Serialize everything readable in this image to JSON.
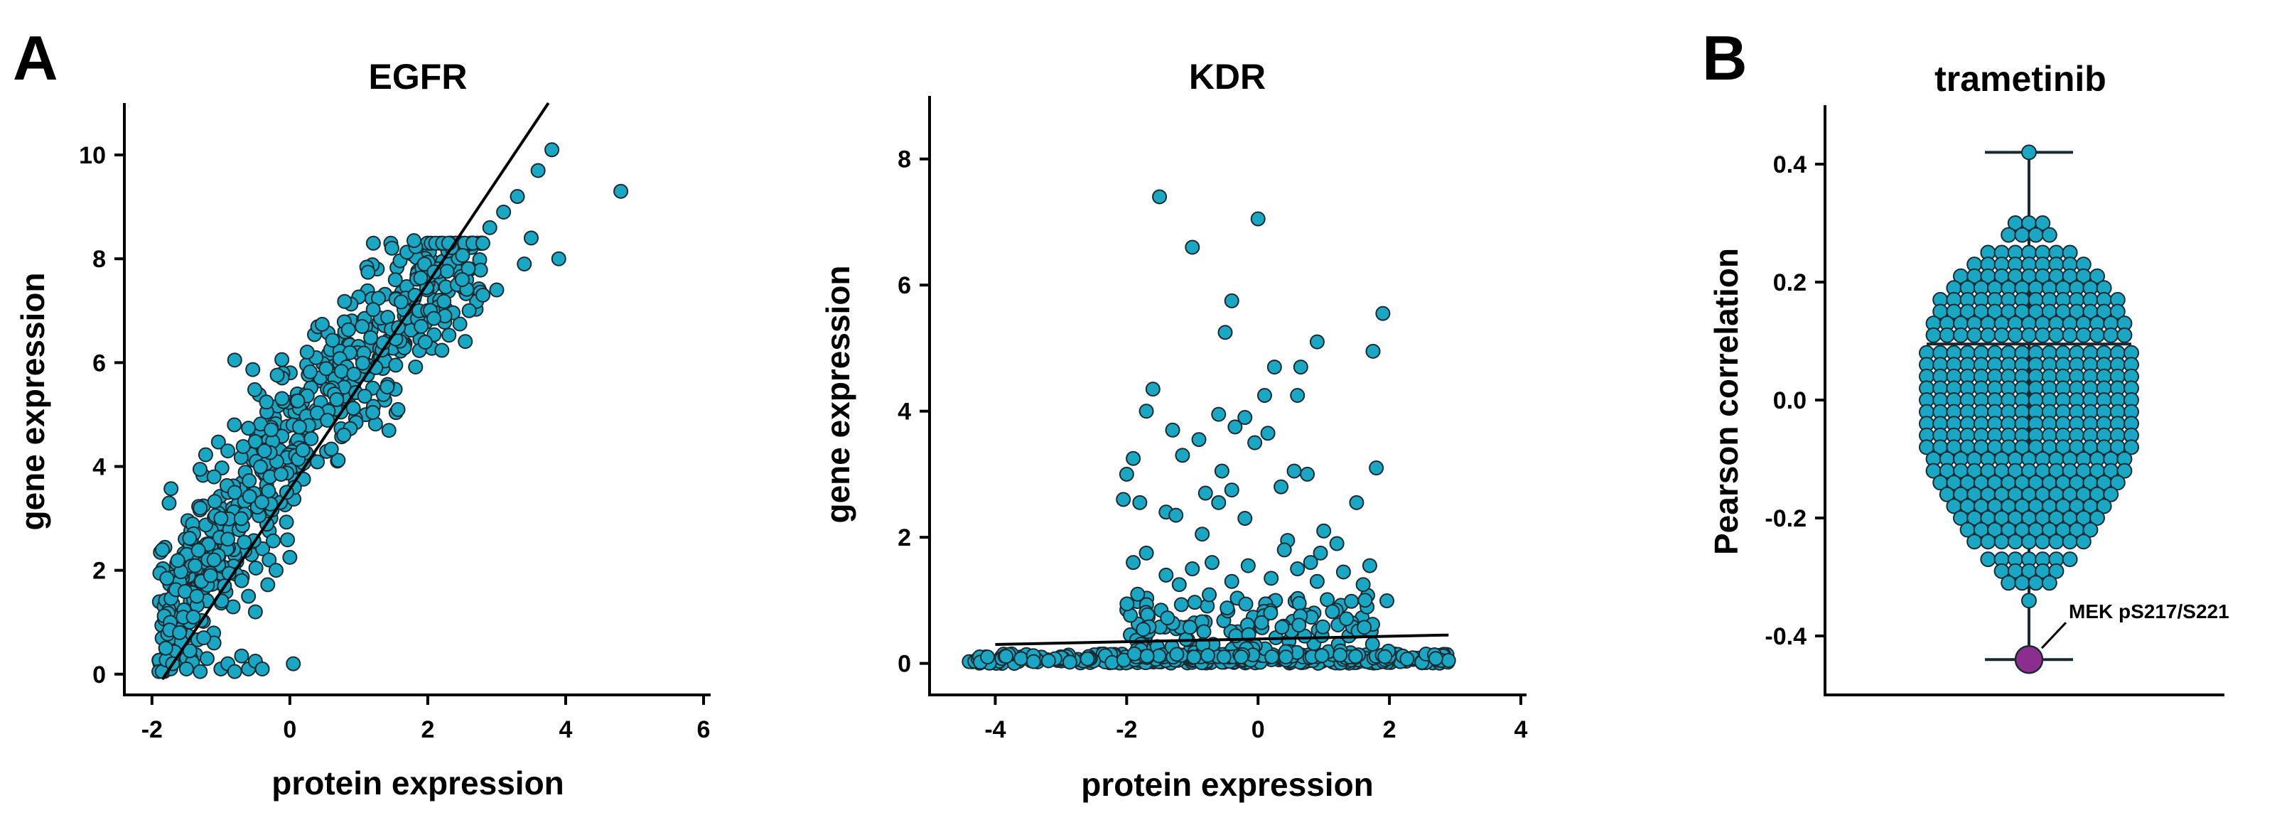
{
  "panels": {
    "a_letter": "A",
    "b_letter": "B"
  },
  "accent": "#1aa7c4",
  "highlight_color": "#8c2e8e",
  "chart_data": [
    {
      "type": "scatter",
      "title": "EGFR",
      "xlabel": "protein expression",
      "ylabel": "gene expression",
      "xlim": [
        -2.4,
        6.0
      ],
      "ylim": [
        -0.4,
        11.0
      ],
      "xticks": [
        -2,
        0,
        2,
        4,
        6
      ],
      "yticks": [
        0,
        2,
        4,
        6,
        8,
        10
      ],
      "grid": false,
      "point_color": "#1aa7c4",
      "fit_line": [
        [
          -1.85,
          -0.1
        ],
        [
          3.75,
          11.0
        ]
      ],
      "generated_cloud": {
        "seed": 7,
        "n": 650,
        "xmin": -1.9,
        "xmax": 2.8,
        "slope": 1.7,
        "intercept": 4.6,
        "noise": 0.75
      },
      "points": [
        [
          3.8,
          10.1
        ],
        [
          4.8,
          9.3
        ],
        [
          3.6,
          9.7
        ],
        [
          3.3,
          9.2
        ],
        [
          3.1,
          8.9
        ],
        [
          2.9,
          8.6
        ],
        [
          3.5,
          8.4
        ],
        [
          3.9,
          8.0
        ],
        [
          3.4,
          7.9
        ],
        [
          3.0,
          7.4
        ],
        [
          2.8,
          7.3
        ],
        [
          2.5,
          7.6
        ],
        [
          2.6,
          7.0
        ],
        [
          1.8,
          8.35
        ],
        [
          -0.8,
          6.05
        ],
        [
          -1.8,
          0.5
        ],
        [
          -1.7,
          0.2
        ],
        [
          -1.6,
          0.8
        ],
        [
          -1.5,
          0.1
        ],
        [
          -1.45,
          0.45
        ],
        [
          -1.4,
          1.1
        ],
        [
          -1.3,
          0.05
        ],
        [
          -1.2,
          0.3
        ],
        [
          -1.1,
          0.6
        ],
        [
          -1.0,
          0.1
        ],
        [
          -0.9,
          0.2
        ],
        [
          -0.8,
          0.05
        ],
        [
          -0.7,
          0.35
        ],
        [
          -0.6,
          0.1
        ],
        [
          -0.5,
          0.25
        ],
        [
          -0.4,
          0.1
        ],
        [
          0.05,
          0.2
        ],
        [
          -1.25,
          0.7
        ],
        [
          -1.35,
          1.5
        ],
        [
          -1.15,
          1.9
        ],
        [
          -1.3,
          3.2
        ],
        [
          -1.0,
          3.0
        ],
        [
          -0.9,
          2.6
        ],
        [
          -1.1,
          2.2
        ],
        [
          -0.7,
          1.8
        ],
        [
          -0.6,
          1.5
        ],
        [
          -0.5,
          1.2
        ],
        [
          -0.3,
          2.2
        ],
        [
          -0.2,
          2.0
        ],
        [
          0.0,
          2.25
        ],
        [
          -0.8,
          3.5
        ],
        [
          -0.9,
          4.3
        ],
        [
          -1.1,
          3.8
        ]
      ]
    },
    {
      "type": "scatter",
      "title": "KDR",
      "xlabel": "protein expression",
      "ylabel": "gene expression",
      "xlim": [
        -5.0,
        4.0
      ],
      "ylim": [
        -0.5,
        9.0
      ],
      "xticks": [
        -4,
        -2,
        0,
        2,
        4
      ],
      "yticks": [
        0,
        2,
        4,
        6,
        8
      ],
      "grid": false,
      "point_color": "#1aa7c4",
      "fit_line": [
        [
          -4.0,
          0.3
        ],
        [
          2.9,
          0.45
        ]
      ],
      "generated_baseline": {
        "seed": 11,
        "n": 380,
        "xmin": -4.4,
        "xmax": 2.9,
        "ymax": 0.15
      },
      "generated_mid": {
        "seed": 23,
        "n": 170,
        "xmin": -2.0,
        "xmax": 2.0,
        "ymin": 0.1,
        "ymax": 1.1
      },
      "points": [
        [
          -1.5,
          7.4
        ],
        [
          0.0,
          7.05
        ],
        [
          -1.0,
          6.6
        ],
        [
          -0.4,
          5.75
        ],
        [
          1.9,
          5.55
        ],
        [
          -0.5,
          5.25
        ],
        [
          0.9,
          5.1
        ],
        [
          0.65,
          4.7
        ],
        [
          0.25,
          4.7
        ],
        [
          -1.6,
          4.35
        ],
        [
          0.6,
          4.25
        ],
        [
          1.75,
          4.95
        ],
        [
          0.1,
          4.25
        ],
        [
          -0.6,
          3.95
        ],
        [
          -0.2,
          3.9
        ],
        [
          -1.7,
          4.0
        ],
        [
          -0.35,
          3.75
        ],
        [
          0.15,
          3.65
        ],
        [
          -1.3,
          3.7
        ],
        [
          -0.9,
          3.55
        ],
        [
          -0.05,
          3.5
        ],
        [
          -1.15,
          3.3
        ],
        [
          -1.9,
          3.25
        ],
        [
          -2.0,
          3.0
        ],
        [
          -0.55,
          3.05
        ],
        [
          0.55,
          3.05
        ],
        [
          0.75,
          3.0
        ],
        [
          1.8,
          3.1
        ],
        [
          0.35,
          2.8
        ],
        [
          -0.4,
          2.75
        ],
        [
          -0.8,
          2.7
        ],
        [
          -1.8,
          2.55
        ],
        [
          -2.05,
          2.6
        ],
        [
          -1.4,
          2.4
        ],
        [
          -1.25,
          2.35
        ],
        [
          -0.2,
          2.3
        ],
        [
          1.5,
          2.55
        ],
        [
          -0.6,
          2.55
        ],
        [
          1.0,
          2.1
        ],
        [
          -0.85,
          2.05
        ],
        [
          0.45,
          1.95
        ],
        [
          1.2,
          1.9
        ],
        [
          0.95,
          1.75
        ],
        [
          0.4,
          1.8
        ],
        [
          -1.7,
          1.75
        ],
        [
          -0.7,
          1.6
        ],
        [
          0.8,
          1.6
        ],
        [
          -1.9,
          1.6
        ],
        [
          1.7,
          1.55
        ],
        [
          -0.15,
          1.55
        ],
        [
          0.6,
          1.5
        ],
        [
          -1.0,
          1.5
        ],
        [
          1.3,
          1.45
        ],
        [
          -1.4,
          1.4
        ],
        [
          0.2,
          1.35
        ],
        [
          -0.4,
          1.3
        ],
        [
          0.9,
          1.3
        ],
        [
          1.6,
          1.25
        ],
        [
          -1.2,
          1.25
        ]
      ]
    },
    {
      "type": "box_swarm",
      "title": "trametinib",
      "xlabel": "",
      "ylabel": "Pearson correlation",
      "ylim": [
        -0.5,
        0.5
      ],
      "yticks": [
        -0.4,
        -0.2,
        0.0,
        0.2,
        0.4
      ],
      "ytick_labels": [
        "-0.4",
        "-0.2",
        "0.0",
        "0.2",
        "0.4"
      ],
      "box": {
        "min": -0.44,
        "q1": -0.09,
        "median": 0.0,
        "q3": 0.095,
        "max": 0.42
      },
      "point_color": "#1aa7c4",
      "swarm_rows": [
        [
          0.42,
          1
        ],
        [
          0.3,
          3
        ],
        [
          0.28,
          4
        ],
        [
          0.25,
          7
        ],
        [
          0.23,
          9
        ],
        [
          0.21,
          11
        ],
        [
          0.19,
          12
        ],
        [
          0.17,
          14
        ],
        [
          0.15,
          14
        ],
        [
          0.13,
          15
        ],
        [
          0.11,
          15
        ],
        [
          0.08,
          16
        ],
        [
          0.06,
          16
        ],
        [
          0.04,
          16
        ],
        [
          0.02,
          16
        ],
        [
          0.0,
          16
        ],
        [
          -0.02,
          16
        ],
        [
          -0.04,
          16
        ],
        [
          -0.06,
          16
        ],
        [
          -0.08,
          16
        ],
        [
          -0.1,
          15
        ],
        [
          -0.12,
          15
        ],
        [
          -0.14,
          14
        ],
        [
          -0.16,
          13
        ],
        [
          -0.18,
          12
        ],
        [
          -0.2,
          11
        ],
        [
          -0.22,
          10
        ],
        [
          -0.24,
          9
        ],
        [
          -0.27,
          7
        ],
        [
          -0.29,
          5
        ],
        [
          -0.31,
          4
        ],
        [
          -0.34,
          1
        ]
      ],
      "highlight": {
        "label": "MEK pS217/S221",
        "value": -0.44,
        "color": "#8c2e8e"
      }
    }
  ]
}
